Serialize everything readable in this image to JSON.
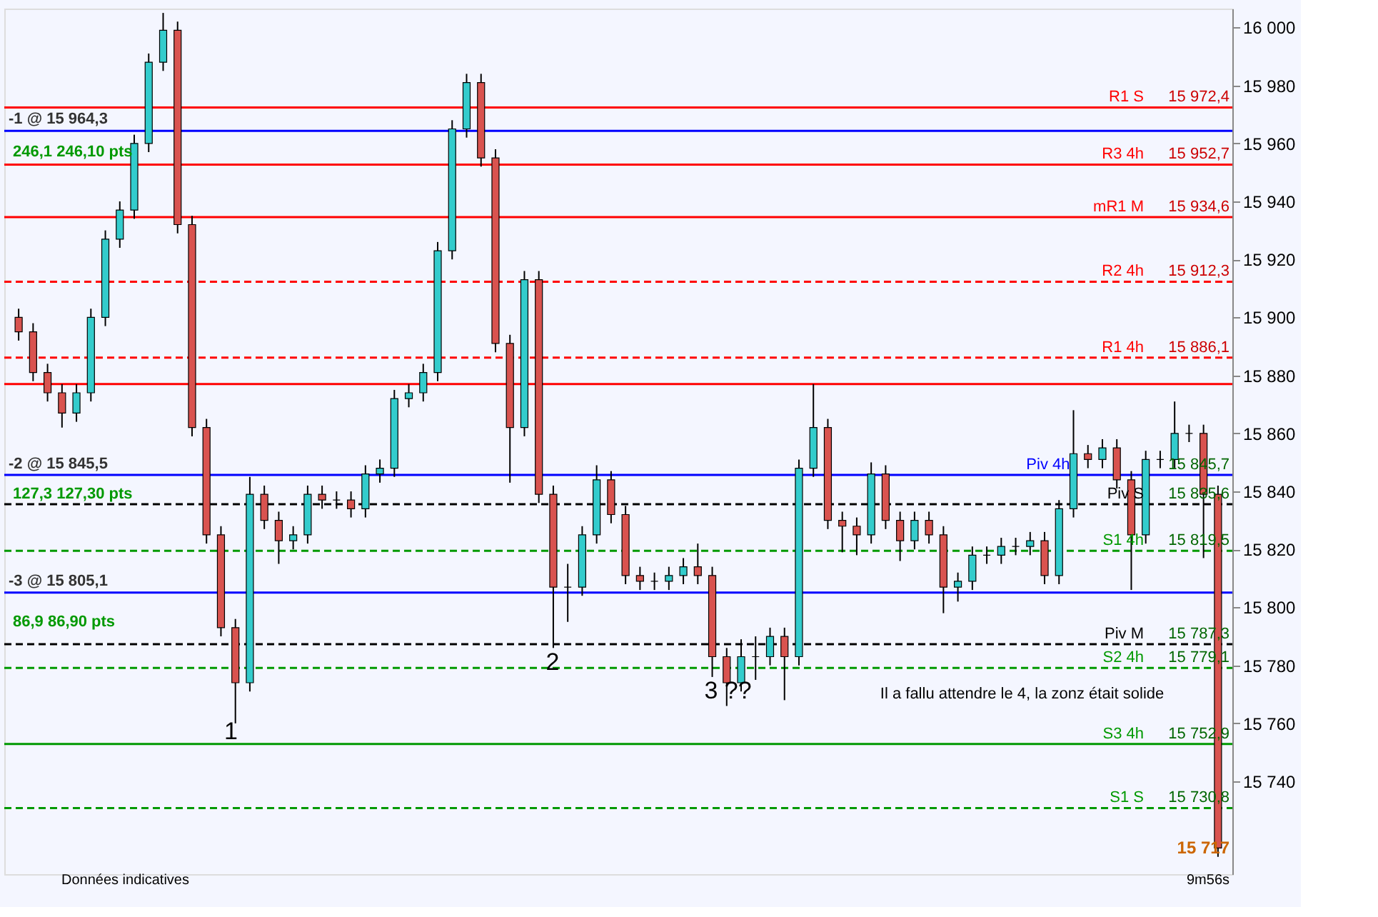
{
  "chart_data": {
    "type": "candlestick",
    "categories": [
      null,
      null,
      null,
      null,
      null,
      null,
      null,
      null,
      null,
      null,
      null,
      null,
      null,
      null,
      null,
      null,
      null,
      null,
      null,
      null,
      null,
      null,
      null,
      null,
      null,
      null,
      null,
      null,
      null,
      null,
      null,
      null,
      null,
      null,
      null,
      null,
      null,
      null,
      null,
      null,
      null,
      null,
      null,
      null,
      null,
      null,
      null,
      null,
      null,
      null,
      null,
      null,
      null,
      null,
      null,
      null,
      null,
      null,
      null,
      null,
      null,
      null,
      null,
      null,
      null,
      null,
      null,
      null,
      null,
      null,
      null,
      null,
      null,
      null,
      null,
      null,
      null,
      null,
      null,
      null,
      null,
      null,
      null,
      null
    ],
    "ohlc": [
      [
        15900,
        15903,
        15892,
        15895
      ],
      [
        15895,
        15898,
        15878,
        15881
      ],
      [
        15881,
        15884,
        15871,
        15874
      ],
      [
        15874,
        15877,
        15862,
        15867
      ],
      [
        15867,
        15877,
        15864,
        15874
      ],
      [
        15874,
        15903,
        15871,
        15900
      ],
      [
        15900,
        15930,
        15897,
        15927
      ],
      [
        15927,
        15940,
        15924,
        15937
      ],
      [
        15937,
        15963,
        15934,
        15960
      ],
      [
        15960,
        15991,
        15957,
        15988
      ],
      [
        15988,
        16005,
        15985,
        15999
      ],
      [
        15999,
        16002,
        15929,
        15932
      ],
      [
        15932,
        15935,
        15859,
        15862
      ],
      [
        15862,
        15865,
        15822,
        15825
      ],
      [
        15825,
        15828,
        15790,
        15793
      ],
      [
        15793,
        15796,
        15760,
        15774
      ],
      [
        15774,
        15845,
        15771,
        15839
      ],
      [
        15839,
        15842,
        15827,
        15830
      ],
      [
        15830,
        15833,
        15815,
        15823
      ],
      [
        15823,
        15828,
        15820,
        15825
      ],
      [
        15825,
        15842,
        15822,
        15839
      ],
      [
        15839,
        15842,
        15834,
        15837
      ],
      [
        15837,
        15840,
        15834,
        15837
      ],
      [
        15837,
        15840,
        15831,
        15834
      ],
      [
        15834,
        15849,
        15831,
        15846
      ],
      [
        15846,
        15851,
        15843,
        15848
      ],
      [
        15848,
        15875,
        15845,
        15872
      ],
      [
        15872,
        15877,
        15869,
        15874
      ],
      [
        15874,
        15884,
        15871,
        15881
      ],
      [
        15881,
        15926,
        15878,
        15923
      ],
      [
        15923,
        15968,
        15920,
        15965
      ],
      [
        15965,
        15984,
        15962,
        15981
      ],
      [
        15981,
        15984,
        15952,
        15955
      ],
      [
        15955,
        15958,
        15888,
        15891
      ],
      [
        15891,
        15894,
        15843,
        15862
      ],
      [
        15862,
        15916,
        15859,
        15913
      ],
      [
        15913,
        15916,
        15836,
        15839
      ],
      [
        15839,
        15842,
        15786,
        15807
      ],
      [
        15807,
        15815,
        15795,
        15807
      ],
      [
        15807,
        15828,
        15804,
        15825
      ],
      [
        15825,
        15849,
        15822,
        15844
      ],
      [
        15844,
        15847,
        15829,
        15832
      ],
      [
        15832,
        15835,
        15808,
        15811
      ],
      [
        15811,
        15814,
        15806,
        15809
      ],
      [
        15809,
        15812,
        15806,
        15809
      ],
      [
        15809,
        15814,
        15806,
        15811
      ],
      [
        15811,
        15817,
        15808,
        15814
      ],
      [
        15814,
        15822,
        15808,
        15811
      ],
      [
        15811,
        15814,
        15776,
        15783
      ],
      [
        15783,
        15786,
        15766,
        15774
      ],
      [
        15774,
        15789,
        15771,
        15783
      ],
      [
        15783,
        15790,
        15775,
        15783
      ],
      [
        15783,
        15793,
        15780,
        15790
      ],
      [
        15790,
        15793,
        15768,
        15783
      ],
      [
        15783,
        15851,
        15780,
        15848
      ],
      [
        15848,
        15877,
        15845,
        15862
      ],
      [
        15862,
        15865,
        15827,
        15830
      ],
      [
        15830,
        15833,
        15819,
        15828
      ],
      [
        15828,
        15831,
        15818,
        15825
      ],
      [
        15825,
        15850,
        15822,
        15846
      ],
      [
        15846,
        15849,
        15827,
        15830
      ],
      [
        15830,
        15833,
        15816,
        15823
      ],
      [
        15823,
        15833,
        15820,
        15830
      ],
      [
        15830,
        15833,
        15822,
        15825
      ],
      [
        15825,
        15828,
        15798,
        15807
      ],
      [
        15807,
        15812,
        15802,
        15809
      ],
      [
        15809,
        15821,
        15806,
        15818
      ],
      [
        15818,
        15821,
        15815,
        15818
      ],
      [
        15818,
        15824,
        15815,
        15821
      ],
      [
        15821,
        15824,
        15818,
        15821
      ],
      [
        15821,
        15826,
        15818,
        15823
      ],
      [
        15823,
        15826,
        15808,
        15811
      ],
      [
        15811,
        15837,
        15808,
        15834
      ],
      [
        15834,
        15868,
        15831,
        15853
      ],
      [
        15853,
        15856,
        15848,
        15851
      ],
      [
        15851,
        15858,
        15848,
        15855
      ],
      [
        15855,
        15858,
        15841,
        15844
      ],
      [
        15844,
        15847,
        15806,
        15825
      ],
      [
        15825,
        15854,
        15822,
        15851
      ],
      [
        15851,
        15854,
        15848,
        15851
      ],
      [
        15851,
        15871,
        15848,
        15860
      ],
      [
        15860,
        15863,
        15857,
        15860
      ],
      [
        15860,
        15863,
        15817,
        15839
      ],
      [
        15839,
        15842,
        15714,
        15717
      ]
    ],
    "ylim": [
      15708,
      16006.5
    ],
    "yticks": [
      {
        "value": 15740,
        "label": "15 740"
      },
      {
        "value": 15760,
        "label": "15 760"
      },
      {
        "value": 15780,
        "label": "15 780"
      },
      {
        "value": 15800,
        "label": "15 800"
      },
      {
        "value": 15820,
        "label": "15 820"
      },
      {
        "value": 15840,
        "label": "15 840"
      },
      {
        "value": 15860,
        "label": "15 860"
      },
      {
        "value": 15880,
        "label": "15 880"
      },
      {
        "value": 15900,
        "label": "15 900"
      },
      {
        "value": 15920,
        "label": "15 920"
      },
      {
        "value": 15940,
        "label": "15 940"
      },
      {
        "value": 15960,
        "label": "15 960"
      },
      {
        "value": 15980,
        "label": "15 980"
      },
      {
        "value": 16000,
        "label": "16 000"
      }
    ],
    "grid": false,
    "ref_lines": [
      {
        "axis": "y",
        "value": 15972.4,
        "label": "R1 S",
        "color": "#ff0000",
        "line_style": "solid"
      },
      {
        "axis": "y",
        "value": 15964.3,
        "label": null,
        "color": "#0000ff",
        "line_style": "solid"
      },
      {
        "axis": "y",
        "value": 15952.7,
        "label": "R3 4h",
        "color": "#ff0000",
        "line_style": "solid"
      },
      {
        "axis": "y",
        "value": 15934.6,
        "label": "mR1 M",
        "color": "#ff0000",
        "line_style": "solid"
      },
      {
        "axis": "y",
        "value": 15912.3,
        "label": "R2 4h",
        "color": "#ff0000",
        "line_style": "dashed"
      },
      {
        "axis": "y",
        "value": 15886.1,
        "label": "R1 4h",
        "color": "#ff0000",
        "line_style": "dashed"
      },
      {
        "axis": "y",
        "value": 15877,
        "label": null,
        "color": "#ff0000",
        "line_style": "solid"
      },
      {
        "axis": "y",
        "value": 15845.7,
        "label": "Piv 4h",
        "color": "#0000ff",
        "line_style": "solid"
      },
      {
        "axis": "y",
        "value": 15835.6,
        "label": "Piv S",
        "color": "#000000",
        "line_style": "dashed"
      },
      {
        "axis": "y",
        "value": 15819.5,
        "label": "S1 4h",
        "color": "#009900",
        "line_style": "dashed"
      },
      {
        "axis": "y",
        "value": 15805.1,
        "label": null,
        "color": "#0000ff",
        "line_style": "solid"
      },
      {
        "axis": "y",
        "value": 15787.3,
        "label": "Piv M",
        "color": "#000000",
        "line_style": "dashed"
      },
      {
        "axis": "y",
        "value": 15779.1,
        "label": "S2 4h",
        "color": "#009900",
        "line_style": "dashed"
      },
      {
        "axis": "y",
        "value": 15752.9,
        "label": "S3 4h",
        "color": "#009900",
        "line_style": "solid"
      },
      {
        "axis": "y",
        "value": 15730.8,
        "label": "S1 S",
        "color": "#009900",
        "line_style": "dashed"
      }
    ],
    "annotations": [
      {
        "text": "15 972,4",
        "y": 15972.4
      },
      {
        "text": "15 952,7",
        "y": 15952.7
      },
      {
        "text": "15 934,6",
        "y": 15934.6
      },
      {
        "text": "15 912,3",
        "y": 15912.3
      },
      {
        "text": "15 886,1",
        "y": 15886.1
      },
      {
        "text": "15 845,7",
        "y": 15845.7
      },
      {
        "text": "15 835,6",
        "y": 15835.6
      },
      {
        "text": "15 819,5",
        "y": 15819.5
      },
      {
        "text": "15 787,3",
        "y": 15787.3
      },
      {
        "text": "15 779,1",
        "y": 15779.1
      },
      {
        "text": "15 752,9",
        "y": 15752.9
      },
      {
        "text": "15 730,8",
        "y": 15730.8
      },
      "15 717",
      {
        "text": "-1 @ 15 964,3",
        "y": 15964.3
      },
      "246,1   246,10 pts",
      {
        "text": "-2 @ 15 845,5",
        "y": 15845.5
      },
      "127,3   127,30 pts",
      {
        "text": "-3 @ 15 805,1",
        "y": 15805.1
      },
      "86,9   86,90 pts",
      "1",
      "2",
      "3 ??",
      "Il a fallu attendre le 4, la zonz était solide",
      "Données indicatives",
      "9m56s"
    ]
  }
}
